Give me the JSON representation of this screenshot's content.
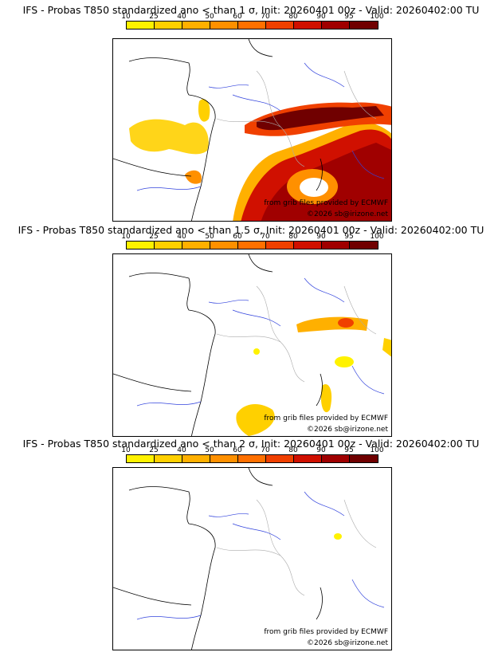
{
  "legend": {
    "levels": [
      "10",
      "25",
      "40",
      "50",
      "60",
      "70",
      "80",
      "90",
      "95",
      "100"
    ],
    "colors": [
      "#fff200",
      "#ffd000",
      "#ffb000",
      "#ff9000",
      "#ff7000",
      "#f04000",
      "#d01000",
      "#a00000",
      "#700000"
    ]
  },
  "panels": [
    {
      "title": "IFS - Probas T850  standardized ano < than 1 σ, Init: 20260401 00z - Valid: 20260402:00 TU"
    },
    {
      "title": "IFS - Probas T850  standardized ano < than 1.5 σ, Init: 20260401 00z - Valid: 20260402:00 TU"
    },
    {
      "title": "IFS - Probas T850  standardized ano < than 2 σ, Init: 20260401 00z - Valid: 20260402:00 TU"
    }
  ],
  "credits": {
    "source": "from grib files provided by ECMWF",
    "copyright": "©2026 sb@irizone.net"
  }
}
